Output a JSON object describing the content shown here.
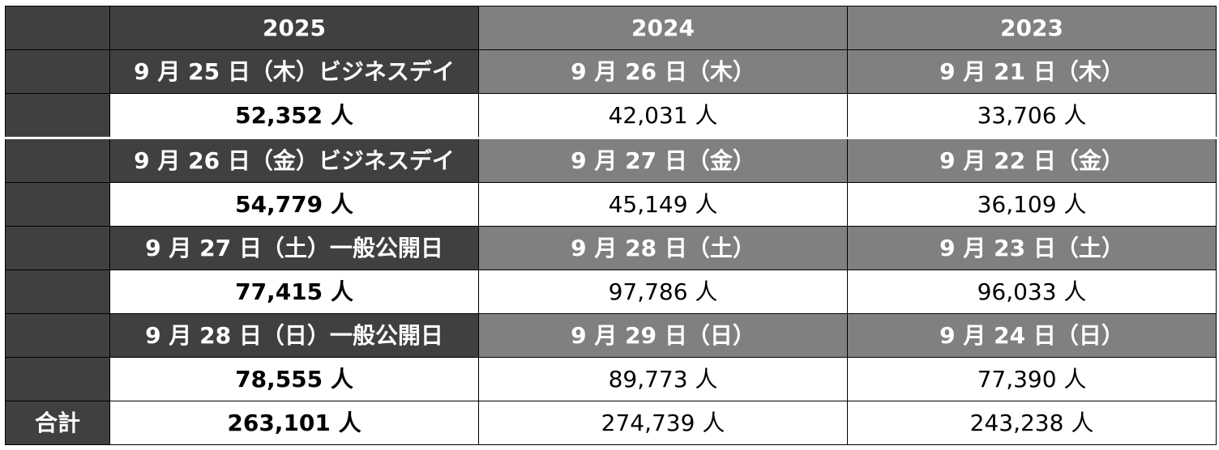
{
  "colors": {
    "dark_header": "#404040",
    "gray_header": "#808080",
    "value_bg": "#ffffff",
    "border": "#000000"
  },
  "years": [
    "2025",
    "2024",
    "2023"
  ],
  "days": [
    {
      "dates": [
        "9 月 25 日（木）ビジネスデイ",
        "9 月 26 日（木）",
        "9 月 21 日（木）"
      ],
      "values": [
        "52,352 人",
        "42,031 人",
        "33,706 人"
      ]
    },
    {
      "dates": [
        "9 月 26 日（金）ビジネスデイ",
        "9 月 27 日（金）",
        "9 月 22 日（金）"
      ],
      "values": [
        "54,779 人",
        "45,149 人",
        "36,109 人"
      ]
    },
    {
      "dates": [
        "9 月 27 日（土）一般公開日",
        "9 月 28 日（土）",
        "9 月 23 日（土）"
      ],
      "values": [
        "77,415 人",
        "97,786 人",
        "96,033 人"
      ]
    },
    {
      "dates": [
        "9 月 28 日（日）一般公開日",
        "9 月 29 日（日）",
        "9 月 24 日（日）"
      ],
      "values": [
        "78,555 人",
        "89,773 人",
        "77,390 人"
      ]
    }
  ],
  "total": {
    "label": "合計",
    "values": [
      "263,101 人",
      "274,739 人",
      "243,238 人"
    ]
  }
}
